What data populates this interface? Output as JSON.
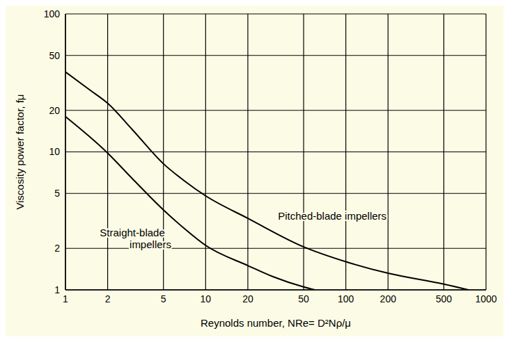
{
  "chart_data": {
    "type": "line",
    "x_label": "Reynolds number, NRe= D²Nρ/μ",
    "y_label": "Viscosity power factor, fμ",
    "log": true,
    "grid": true,
    "xlim": [
      1,
      1000
    ],
    "ylim": [
      1,
      100
    ],
    "xticks": [
      1,
      2,
      5,
      10,
      20,
      50,
      100,
      200,
      500,
      1000
    ],
    "yticks": [
      1,
      2,
      5,
      10,
      20,
      50,
      100
    ],
    "series": [
      {
        "name": "Pitched-blade impellers",
        "color": "#000000",
        "x": [
          1,
          1.5,
          2,
          3,
          5,
          7,
          10,
          20,
          50,
          100,
          200,
          500,
          750
        ],
        "values": [
          38,
          28,
          22.5,
          14.5,
          8.2,
          6.2,
          4.8,
          3.3,
          2.05,
          1.6,
          1.32,
          1.1,
          1.0
        ]
      },
      {
        "name": "Straight-blade impellers",
        "color": "#000000",
        "x": [
          1,
          2,
          3,
          5,
          7,
          10,
          20,
          30,
          50,
          60
        ],
        "values": [
          18,
          9.8,
          6.4,
          3.8,
          2.8,
          2.1,
          1.5,
          1.25,
          1.05,
          1.0
        ]
      }
    ]
  }
}
